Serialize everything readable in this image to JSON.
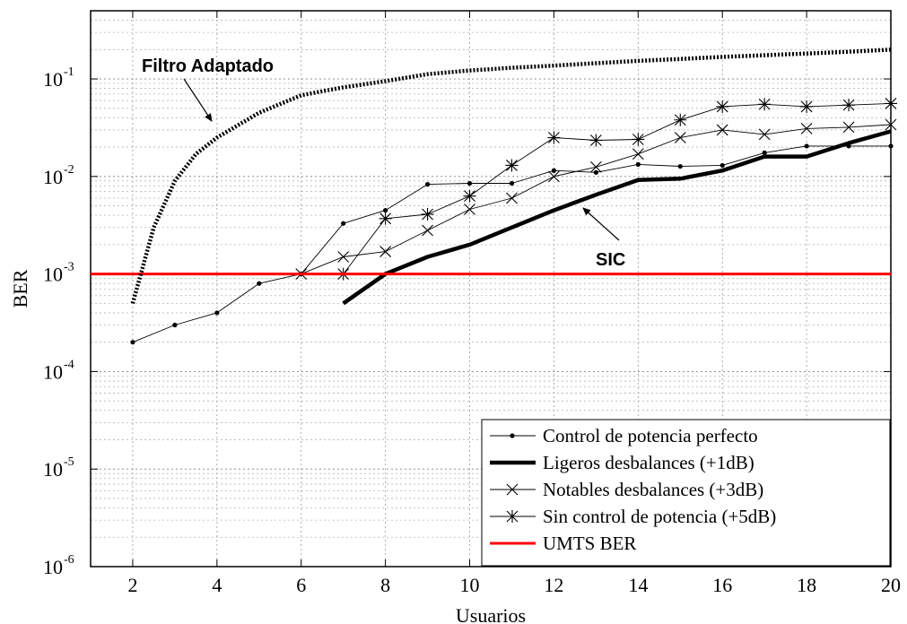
{
  "chart_data": {
    "type": "line",
    "xlabel": "Usuarios",
    "ylabel": "BER",
    "xlim": [
      1,
      20
    ],
    "ylim": [
      1e-06,
      0.5
    ],
    "yscale": "log",
    "grid": true,
    "x_ticks": [
      2,
      4,
      6,
      8,
      10,
      12,
      14,
      16,
      18,
      20
    ],
    "y_ticks": [
      {
        "value": 1e-06,
        "base": "10",
        "exp": "-6"
      },
      {
        "value": 1e-05,
        "base": "10",
        "exp": "-5"
      },
      {
        "value": 0.0001,
        "base": "10",
        "exp": "-4"
      },
      {
        "value": 0.001,
        "base": "10",
        "exp": "-3"
      },
      {
        "value": 0.01,
        "base": "10",
        "exp": "-2"
      },
      {
        "value": 0.1,
        "base": "10",
        "exp": "-1"
      }
    ],
    "legend_position": "bottom-right",
    "series": [
      {
        "name": "Control de potencia perfecto",
        "style": "thin-dot",
        "color": "#000000",
        "x": [
          2,
          3,
          4,
          5,
          6,
          7,
          8,
          9,
          10,
          11,
          12,
          13,
          14,
          15,
          16,
          17,
          18,
          19,
          20
        ],
        "y": [
          0.0002,
          0.0003,
          0.0004,
          0.0008,
          0.001,
          0.0033,
          0.0045,
          0.0083,
          0.0085,
          0.0085,
          0.0115,
          0.011,
          0.0133,
          0.0127,
          0.013,
          0.0175,
          0.0205,
          0.0205,
          0.0205
        ]
      },
      {
        "name": "Ligeros desbalances (+1dB)",
        "style": "thick",
        "color": "#000000",
        "x": [
          7,
          8,
          9,
          10,
          11,
          12,
          13,
          14,
          15,
          16,
          17,
          18,
          19,
          20
        ],
        "y": [
          0.0005,
          0.001,
          0.0015,
          0.002,
          0.003,
          0.0045,
          0.0065,
          0.0092,
          0.0095,
          0.0115,
          0.016,
          0.016,
          0.022,
          0.029
        ]
      },
      {
        "name": "Notables desbalances (+3dB)",
        "style": "thin-x",
        "color": "#000000",
        "x": [
          6,
          7,
          8,
          9,
          10,
          11,
          12,
          13,
          14,
          15,
          16,
          17,
          18,
          19,
          20
        ],
        "y": [
          0.001,
          0.0015,
          0.0017,
          0.0028,
          0.0046,
          0.006,
          0.01,
          0.0125,
          0.017,
          0.025,
          0.03,
          0.027,
          0.031,
          0.032,
          0.034
        ]
      },
      {
        "name": "Sin control de potencia (+5dB)",
        "style": "thin-star",
        "color": "#000000",
        "x": [
          7,
          8,
          9,
          10,
          11,
          12,
          13,
          14,
          15,
          16,
          17,
          18,
          19,
          20
        ],
        "y": [
          0.001,
          0.0037,
          0.0041,
          0.0063,
          0.013,
          0.025,
          0.0235,
          0.024,
          0.038,
          0.052,
          0.055,
          0.052,
          0.054,
          0.056
        ]
      },
      {
        "name": "UMTS BER",
        "style": "red-line",
        "color": "#ff0000",
        "x": [
          1,
          20
        ],
        "y": [
          0.001,
          0.001
        ]
      },
      {
        "name": "Filtro Adaptado",
        "style": "dotted",
        "color": "#000000",
        "x": [
          2,
          2.5,
          3,
          3.5,
          4,
          5,
          6,
          7,
          8,
          9,
          10,
          11,
          12,
          13,
          14,
          15,
          16,
          17,
          18,
          19,
          20
        ],
        "y": [
          0.0005,
          0.003,
          0.009,
          0.017,
          0.025,
          0.045,
          0.068,
          0.082,
          0.095,
          0.112,
          0.122,
          0.13,
          0.137,
          0.145,
          0.153,
          0.16,
          0.168,
          0.175,
          0.182,
          0.19,
          0.2
        ]
      }
    ],
    "annotations": [
      {
        "text": "Filtro Adaptado",
        "points_to_series": "Filtro Adaptado"
      },
      {
        "text": "SIC",
        "points_to_series": "Ligeros desbalances (+1dB)"
      }
    ]
  }
}
